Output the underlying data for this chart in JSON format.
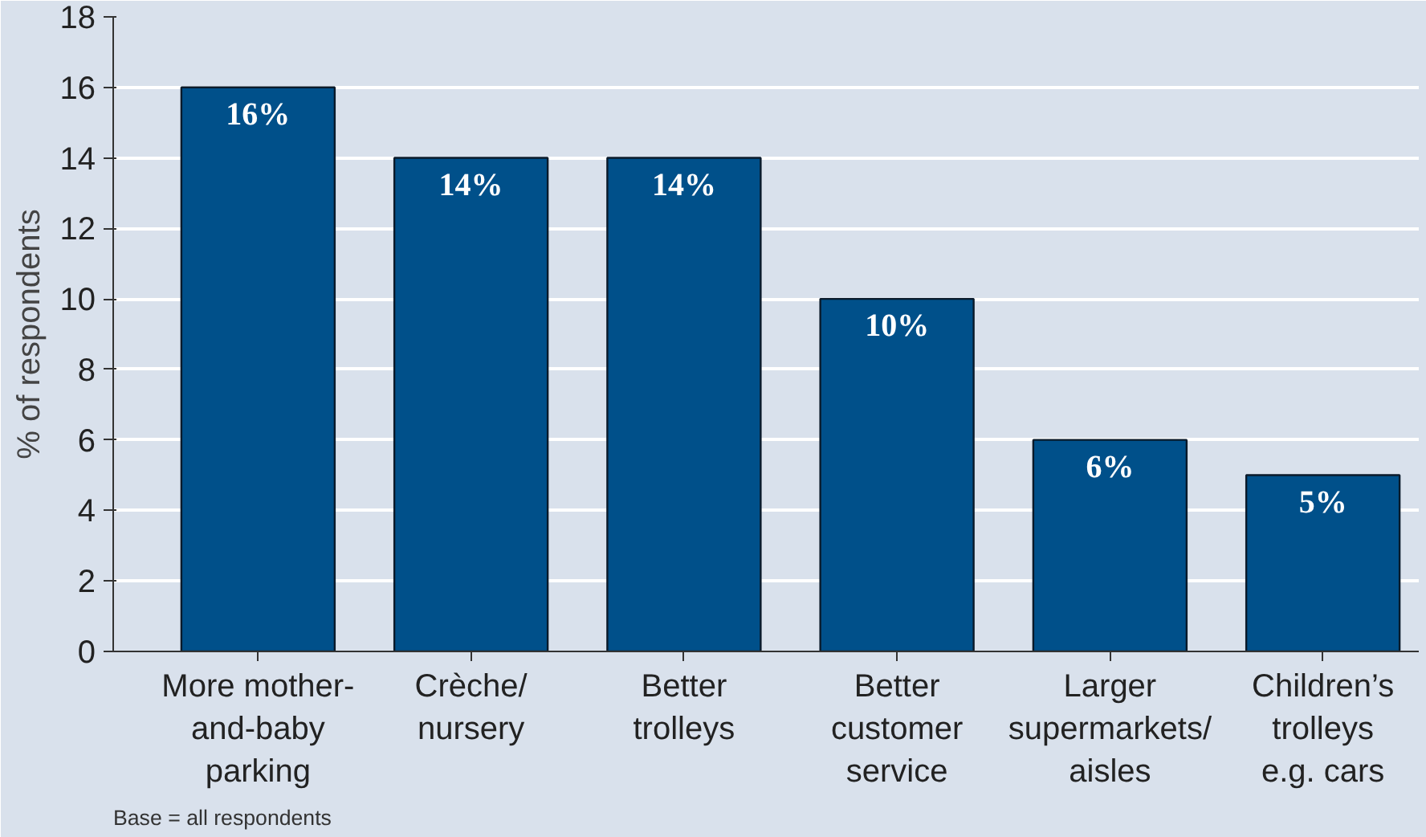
{
  "chart_data": {
    "type": "bar",
    "ylabel": "% of respondents",
    "categories": [
      "More mother-\nand-baby\nparking",
      "Crèche/\nnursery",
      "Better\ntrolleys",
      "Better\ncustomer\nservice",
      "Larger\nsupermarkets/\naisles",
      "Children’s\ntrolleys\ne.g. cars"
    ],
    "values": [
      16,
      14,
      14,
      10,
      6,
      5
    ],
    "value_labels": [
      "16%",
      "14%",
      "14%",
      "10%",
      "6%",
      "5%"
    ],
    "color": "#00508a",
    "ylim": [
      0,
      18
    ],
    "yticks": [
      0,
      2,
      4,
      6,
      8,
      10,
      12,
      14,
      16,
      18
    ],
    "grid": "y",
    "annotations": [
      "Base = all respondents"
    ]
  }
}
